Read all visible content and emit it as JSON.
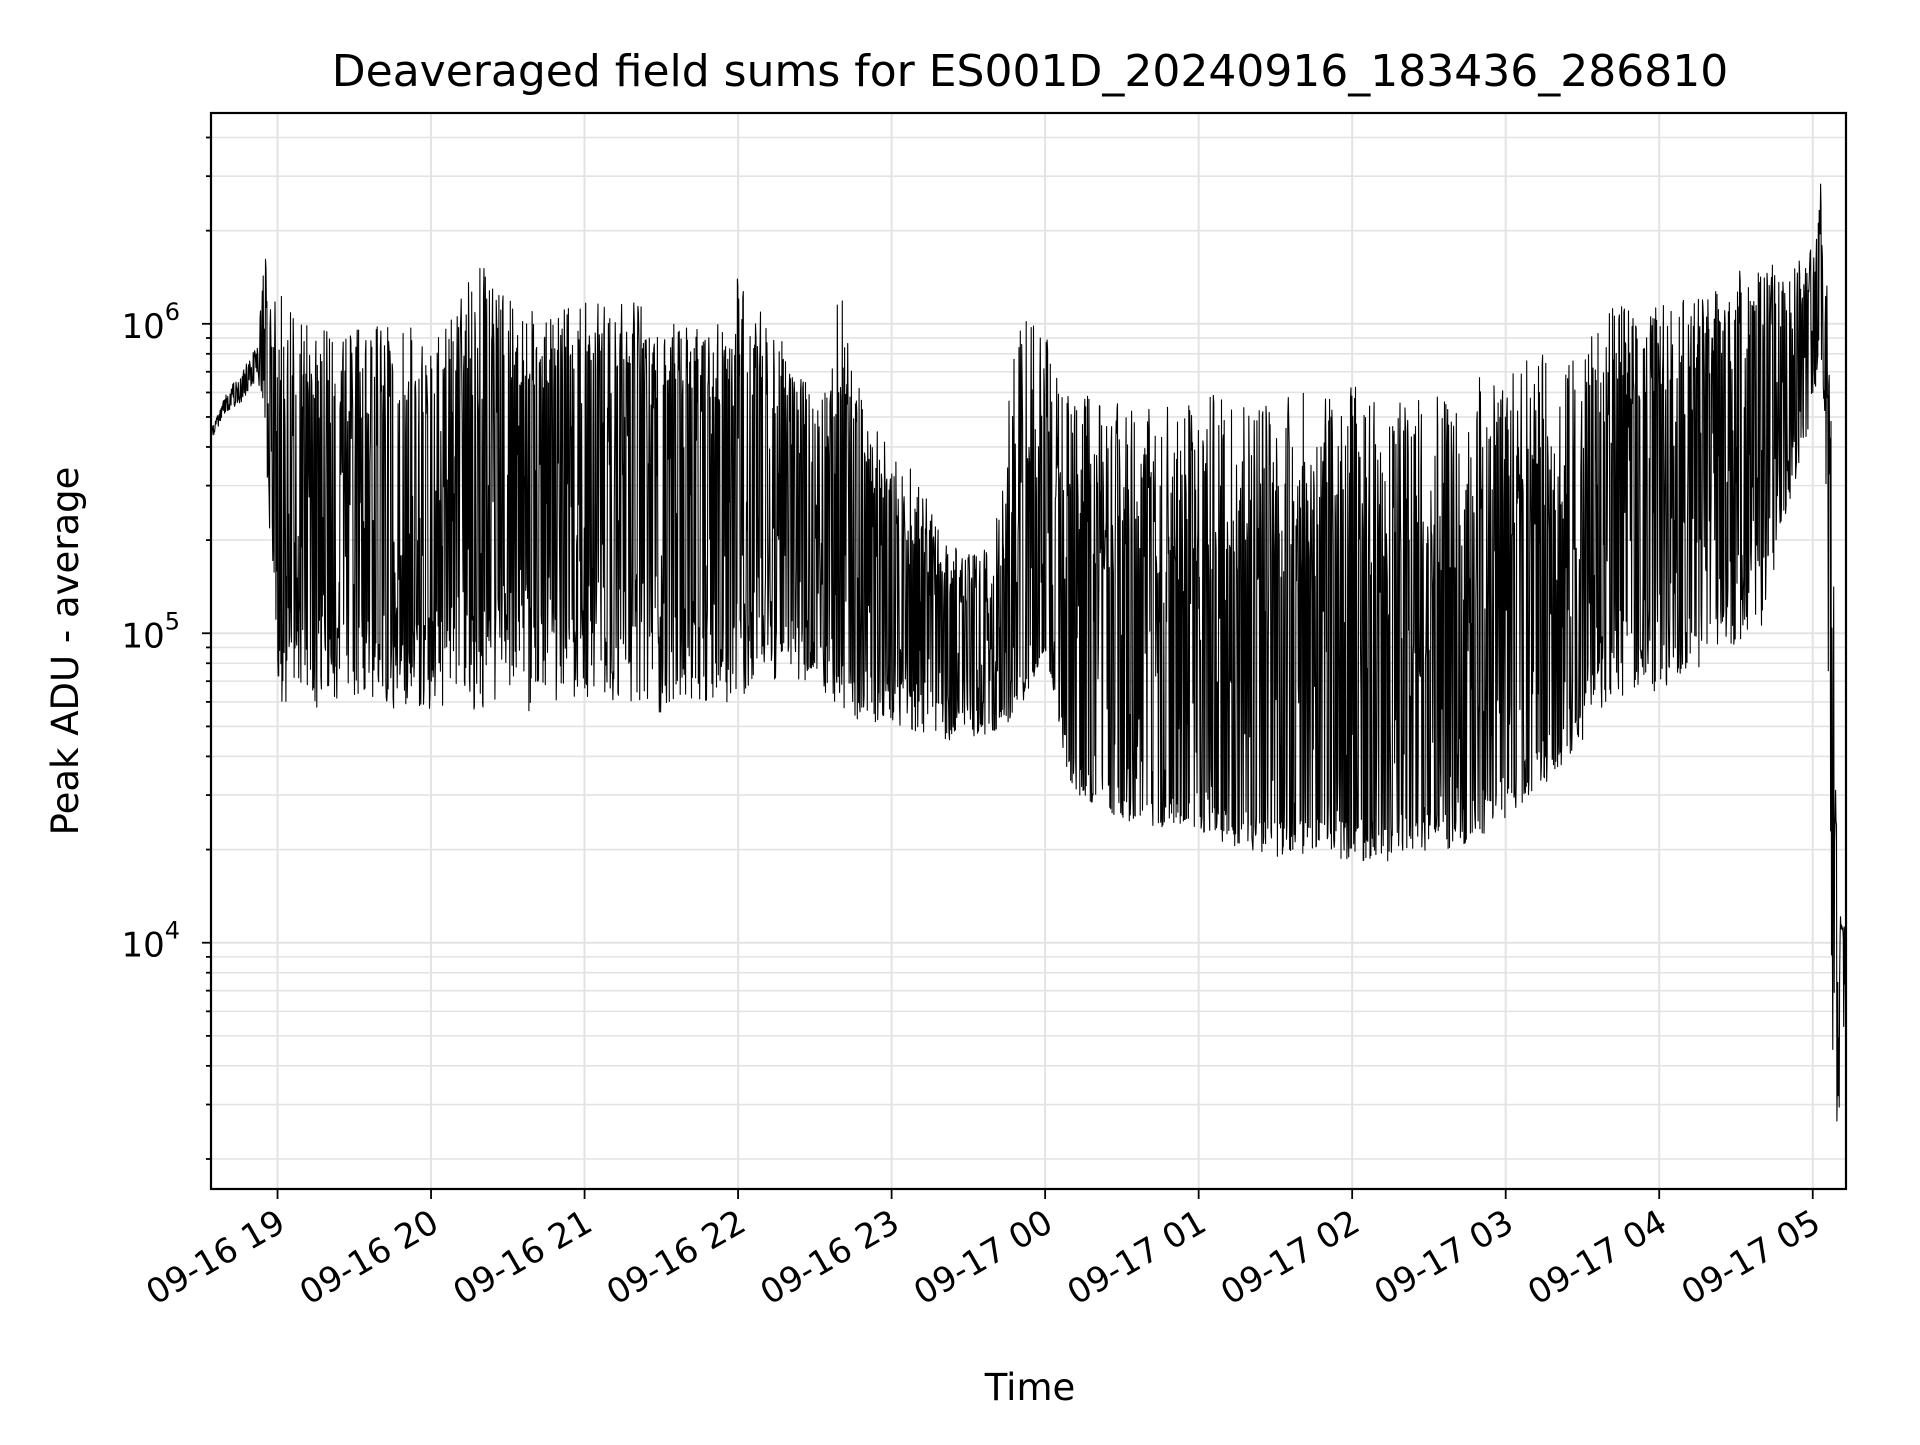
{
  "chart_data": {
    "type": "line",
    "title": "Deaveraged field sums for ES001D_20240916_183436_286810",
    "xlabel": "Time",
    "ylabel": "Peak ADU - average",
    "yscale": "log",
    "x_range": [
      "09-16 18:34",
      "09-17 05:13"
    ],
    "ylim": [
      1600,
      4800000
    ],
    "grid": "both, major and minor",
    "line_color": "#000000",
    "x_ticks": [
      "09-16 19",
      "09-16 20",
      "09-16 21",
      "09-16 22",
      "09-16 23",
      "09-17 00",
      "09-17 01",
      "09-17 02",
      "09-17 03",
      "09-17 04",
      "09-17 05"
    ],
    "y_ticks": [
      {
        "value": 10000,
        "base": "10",
        "exp": "4"
      },
      {
        "value": 100000,
        "base": "10",
        "exp": "5"
      },
      {
        "value": 1000000,
        "base": "10",
        "exp": "6"
      }
    ],
    "series": [
      {
        "x": [
          "09-16 18:34",
          "09-16 18:40",
          "09-16 18:46",
          "09-16 18:52",
          "09-16 18:55",
          "09-16 18:57",
          "09-16 19:00",
          "09-16 19:10",
          "09-16 19:20",
          "09-16 19:30",
          "09-16 19:40",
          "09-16 19:50",
          "09-16 20:00",
          "09-16 20:10",
          "09-16 20:20",
          "09-16 20:30",
          "09-16 20:40",
          "09-16 20:50",
          "09-16 21:00",
          "09-16 21:10",
          "09-16 21:20",
          "09-16 21:30",
          "09-16 21:40",
          "09-16 21:50",
          "09-16 22:00",
          "09-16 22:10",
          "09-16 22:20",
          "09-16 22:30",
          "09-16 22:40",
          "09-16 22:50",
          "09-16 23:00",
          "09-16 23:10",
          "09-16 23:20",
          "09-16 23:30",
          "09-16 23:40",
          "09-16 23:50",
          "09-17 00:00",
          "09-17 00:10",
          "09-17 00:20",
          "09-17 00:30",
          "09-17 00:40",
          "09-17 00:50",
          "09-17 01:00",
          "09-17 01:10",
          "09-17 01:20",
          "09-17 01:30",
          "09-17 01:40",
          "09-17 01:50",
          "09-17 02:00",
          "09-17 02:10",
          "09-17 02:20",
          "09-17 02:30",
          "09-17 02:40",
          "09-17 02:50",
          "09-17 03:00",
          "09-17 03:10",
          "09-17 03:20",
          "09-17 03:30",
          "09-17 03:40",
          "09-17 03:50",
          "09-17 04:00",
          "09-17 04:10",
          "09-17 04:20",
          "09-17 04:30",
          "09-17 04:40",
          "09-17 04:50",
          "09-17 05:00",
          "09-17 05:03",
          "09-17 05:05",
          "09-17 05:08",
          "09-17 05:10",
          "09-17 05:13"
        ],
        "high": [
          450000,
          600000,
          700000,
          850000,
          1800000,
          1100000,
          1300000,
          1000000,
          950000,
          950000,
          1000000,
          1000000,
          900000,
          1200000,
          1600000,
          1200000,
          1100000,
          1100000,
          1200000,
          1150000,
          1200000,
          1000000,
          1000000,
          900000,
          1500000,
          1100000,
          800000,
          600000,
          1300000,
          500000,
          400000,
          350000,
          200000,
          180000,
          200000,
          1200000,
          1100000,
          600000,
          600000,
          550000,
          600000,
          550000,
          600000,
          600000,
          600000,
          600000,
          600000,
          600000,
          650000,
          600000,
          600000,
          600000,
          550000,
          700000,
          650000,
          800000,
          800000,
          800000,
          1200000,
          1100000,
          1150000,
          1200000,
          1300000,
          1500000,
          1600000,
          1500000,
          1800000,
          3300000,
          1600000,
          600000,
          13000,
          11000
        ],
        "low": [
          420000,
          520000,
          560000,
          650000,
          500000,
          200000,
          60000,
          60000,
          55000,
          60000,
          55000,
          55000,
          55000,
          60000,
          55000,
          60000,
          55000,
          55000,
          60000,
          60000,
          60000,
          55000,
          60000,
          60000,
          60000,
          70000,
          70000,
          70000,
          55000,
          50000,
          50000,
          48000,
          45000,
          45000,
          48000,
          55000,
          90000,
          30000,
          28000,
          25000,
          24000,
          23000,
          22000,
          21000,
          20000,
          19000,
          19000,
          19000,
          18000,
          18000,
          19000,
          20000,
          20000,
          22000,
          25000,
          30000,
          35000,
          45000,
          60000,
          60000,
          65000,
          75000,
          80000,
          90000,
          100000,
          250000,
          500000,
          900000,
          400000,
          3000,
          2300,
          7000
        ],
        "typical": [
          440000,
          560000,
          620000,
          760000,
          1300000,
          500000,
          300000,
          250000,
          220000,
          250000,
          250000,
          260000,
          270000,
          300000,
          350000,
          350000,
          330000,
          320000,
          380000,
          400000,
          380000,
          330000,
          300000,
          280000,
          280000,
          250000,
          200000,
          170000,
          150000,
          120000,
          110000,
          100000,
          90000,
          80000,
          75000,
          80000,
          90000,
          55000,
          45000,
          40000,
          38000,
          38000,
          38000,
          37000,
          36000,
          35000,
          35000,
          35000,
          35000,
          36000,
          37000,
          40000,
          42000,
          45000,
          48000,
          55000,
          70000,
          100000,
          200000,
          250000,
          300000,
          300000,
          330000,
          380000,
          400000,
          500000,
          800000,
          1200000,
          900000,
          6000,
          8000,
          11000
        ]
      }
    ]
  }
}
